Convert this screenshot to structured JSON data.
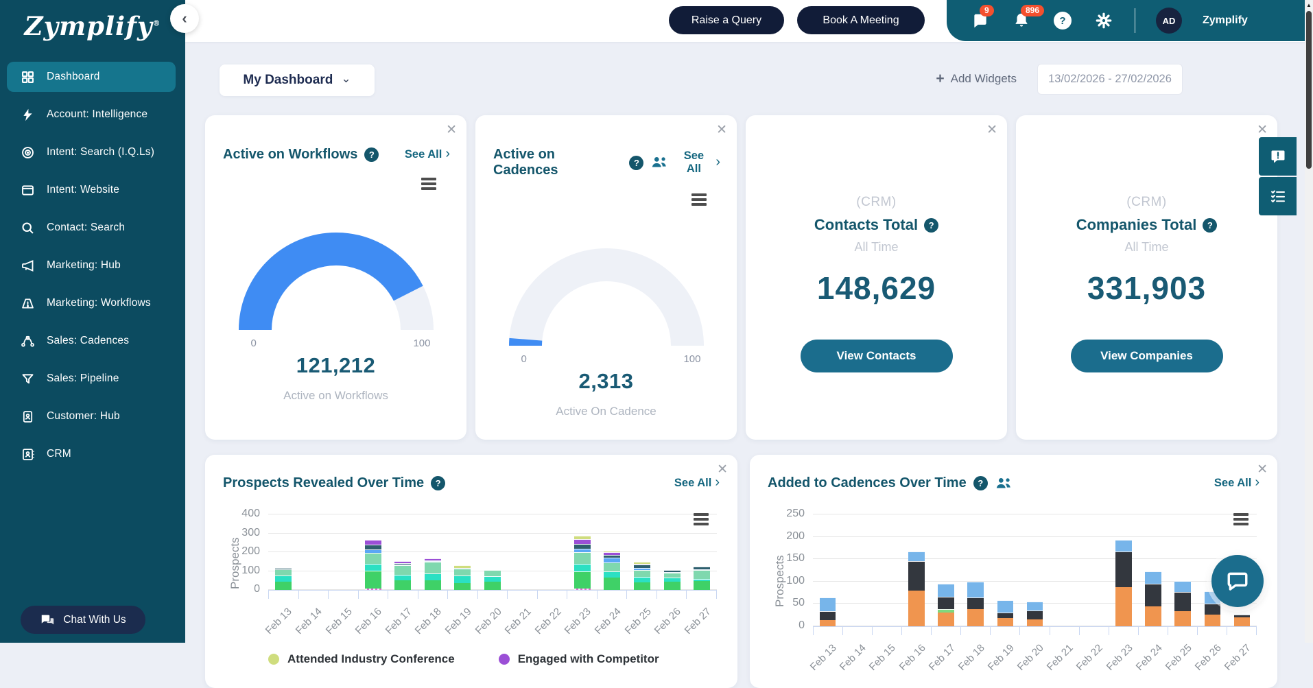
{
  "app": {
    "brand": "Zymplify",
    "account_name": "Zymplify",
    "avatar_initials": "AD"
  },
  "icons": {
    "close": "✕",
    "chevron_right": "›",
    "chevron_down": "⌄",
    "chevron_left": "‹",
    "plus": "+",
    "question_mark": "?",
    "scroll_up_arrow": "▲"
  },
  "header": {
    "raise_query_label": "Raise a Query",
    "book_meeting_label": "Book A Meeting",
    "chat_badge": "9",
    "notifications_badge": "896"
  },
  "sidebar": {
    "items": [
      {
        "label": "Dashboard",
        "icon": "dashboard-grid-icon",
        "active": true
      },
      {
        "label": "Account: Intelligence",
        "icon": "lightning-icon"
      },
      {
        "label": "Intent: Search (I.Q.Ls)",
        "icon": "target-icon"
      },
      {
        "label": "Intent: Website",
        "icon": "browser-window-icon"
      },
      {
        "label": "Contact: Search",
        "icon": "search-icon"
      },
      {
        "label": "Marketing: Hub",
        "icon": "megaphone-icon"
      },
      {
        "label": "Marketing: Workflows",
        "icon": "gauge-alert-icon"
      },
      {
        "label": "Sales: Cadences",
        "icon": "bezier-nodes-icon"
      },
      {
        "label": "Sales: Pipeline",
        "icon": "funnel-icon"
      },
      {
        "label": "Customer: Hub",
        "icon": "customer-doc-icon"
      },
      {
        "label": "CRM",
        "icon": "contact-book-icon"
      }
    ],
    "chat_with_us_label": "Chat With Us"
  },
  "toolbar": {
    "dashboard_selector": "My Dashboard",
    "add_widgets_label": "Add Widgets",
    "date_range": "13/02/2026 - 27/02/2026"
  },
  "widgets": {
    "workflows": {
      "title": "Active on Workflows",
      "see_all": "See All",
      "gauge_min": "0",
      "gauge_max": "100",
      "gauge_percent": 85,
      "gauge_color": "#3F8CF3",
      "value": "121,212",
      "subtitle": "Active on Workflows"
    },
    "cadences": {
      "title": "Active on Cadences",
      "see_all": "See All",
      "gauge_min": "0",
      "gauge_max": "100",
      "gauge_percent": 2.5,
      "gauge_color": "#3F8CF3",
      "value": "2,313",
      "subtitle": "Active On Cadence"
    },
    "contacts": {
      "kicker": "(CRM)",
      "title": "Contacts Total",
      "period": "All Time",
      "value": "148,629",
      "button_label": "View Contacts"
    },
    "companies": {
      "kicker": "(CRM)",
      "title": "Companies Total",
      "period": "All Time",
      "value": "331,903",
      "button_label": "View Companies"
    }
  },
  "chart_data": [
    {
      "type": "bar",
      "stacked": true,
      "title": "Prospects Revealed Over Time",
      "see_all": "See All",
      "ylabel": "Prospects",
      "ylim": [
        0,
        400
      ],
      "yticks": [
        0,
        100,
        200,
        300,
        400
      ],
      "grid": true,
      "legend_position": "bottom",
      "categories": [
        "Feb 13",
        "Feb 14",
        "Feb 15",
        "Feb 16",
        "Feb 17",
        "Feb 18",
        "Feb 19",
        "Feb 20",
        "Feb 21",
        "Feb 22",
        "Feb 23",
        "Feb 24",
        "Feb 25",
        "Feb 26",
        "Feb 27"
      ],
      "series": [
        {
          "name": "series-magenta",
          "color": "#E06AD4",
          "dotted": true,
          "values": [
            0,
            0,
            0,
            6,
            0,
            0,
            0,
            0,
            0,
            0,
            8,
            0,
            0,
            0,
            0
          ]
        },
        {
          "name": "series-green",
          "color": "#3FD167",
          "values": [
            45,
            0,
            0,
            96,
            52,
            52,
            36,
            42,
            0,
            0,
            90,
            66,
            40,
            42,
            48
          ]
        },
        {
          "name": "series-turquoise",
          "color": "#2BE0C3",
          "values": [
            30,
            0,
            0,
            38,
            28,
            36,
            40,
            30,
            0,
            0,
            40,
            34,
            28,
            22,
            12
          ]
        },
        {
          "name": "series-seafoam",
          "color": "#7FD8AE",
          "values": [
            35,
            0,
            0,
            58,
            52,
            60,
            38,
            35,
            0,
            0,
            62,
            44,
            36,
            28,
            44
          ]
        },
        {
          "name": "series-blue",
          "color": "#5AA7F5",
          "values": [
            0,
            0,
            0,
            18,
            4,
            6,
            0,
            0,
            0,
            0,
            20,
            26,
            14,
            4,
            6
          ]
        },
        {
          "name": "series-slate",
          "color": "#2E5F6E",
          "values": [
            8,
            0,
            0,
            26,
            6,
            4,
            4,
            0,
            0,
            0,
            22,
            16,
            16,
            8,
            14
          ]
        },
        {
          "name": "Engaged with Competitor",
          "color": "#9B4FD6",
          "values": [
            0,
            0,
            0,
            24,
            10,
            8,
            0,
            0,
            0,
            0,
            26,
            16,
            6,
            0,
            0
          ]
        },
        {
          "name": "Attended Industry Conference",
          "color": "#CFDD7E",
          "values": [
            0,
            0,
            0,
            0,
            0,
            0,
            12,
            0,
            0,
            0,
            20,
            4,
            10,
            0,
            0
          ]
        }
      ],
      "legend": [
        {
          "label": "Attended Industry Conference",
          "color": "#CFDD7E"
        },
        {
          "label": "Engaged with Competitor",
          "color": "#9B4FD6"
        }
      ]
    },
    {
      "type": "bar",
      "stacked": true,
      "title": "Added to Cadences Over Time",
      "see_all": "See All",
      "ylabel": "Prospects",
      "ylim": [
        0,
        250
      ],
      "yticks": [
        0,
        50,
        100,
        150,
        200,
        250
      ],
      "grid": true,
      "categories": [
        "Feb 13",
        "Feb 14",
        "Feb 15",
        "Feb 16",
        "Feb 17",
        "Feb 18",
        "Feb 19",
        "Feb 20",
        "Feb 21",
        "Feb 22",
        "Feb 23",
        "Feb 24",
        "Feb 25",
        "Feb 26",
        "Feb 27"
      ],
      "series": [
        {
          "name": "series-orange",
          "color": "#F0954F",
          "values": [
            14,
            0,
            0,
            80,
            30,
            38,
            18,
            16,
            0,
            0,
            87,
            45,
            34,
            26,
            20
          ]
        },
        {
          "name": "series-lightgreen",
          "color": "#7ED87E",
          "values": [
            0,
            0,
            0,
            0,
            8,
            0,
            0,
            0,
            0,
            0,
            0,
            0,
            0,
            0,
            0
          ]
        },
        {
          "name": "series-charcoal",
          "color": "#33373E",
          "values": [
            20,
            0,
            0,
            66,
            28,
            26,
            13,
            20,
            0,
            0,
            80,
            50,
            43,
            25,
            6
          ]
        },
        {
          "name": "series-lightblue",
          "color": "#77B5EA",
          "values": [
            30,
            0,
            0,
            21,
            29,
            35,
            27,
            20,
            0,
            0,
            26,
            28,
            24,
            27,
            2
          ]
        }
      ]
    }
  ],
  "colors": {
    "sidebar_bg": "#0C4B60",
    "sidebar_active": "#15758D",
    "header_teal": "#0F5D73",
    "navy_button": "#111C38",
    "badge_red": "#F4502E",
    "accent_blue": "#3F8CF3",
    "teal_heading": "#14566B",
    "teal_button": "#1B6D8D",
    "value_teal": "#195A74",
    "page_bg": "#ECEFF6"
  }
}
